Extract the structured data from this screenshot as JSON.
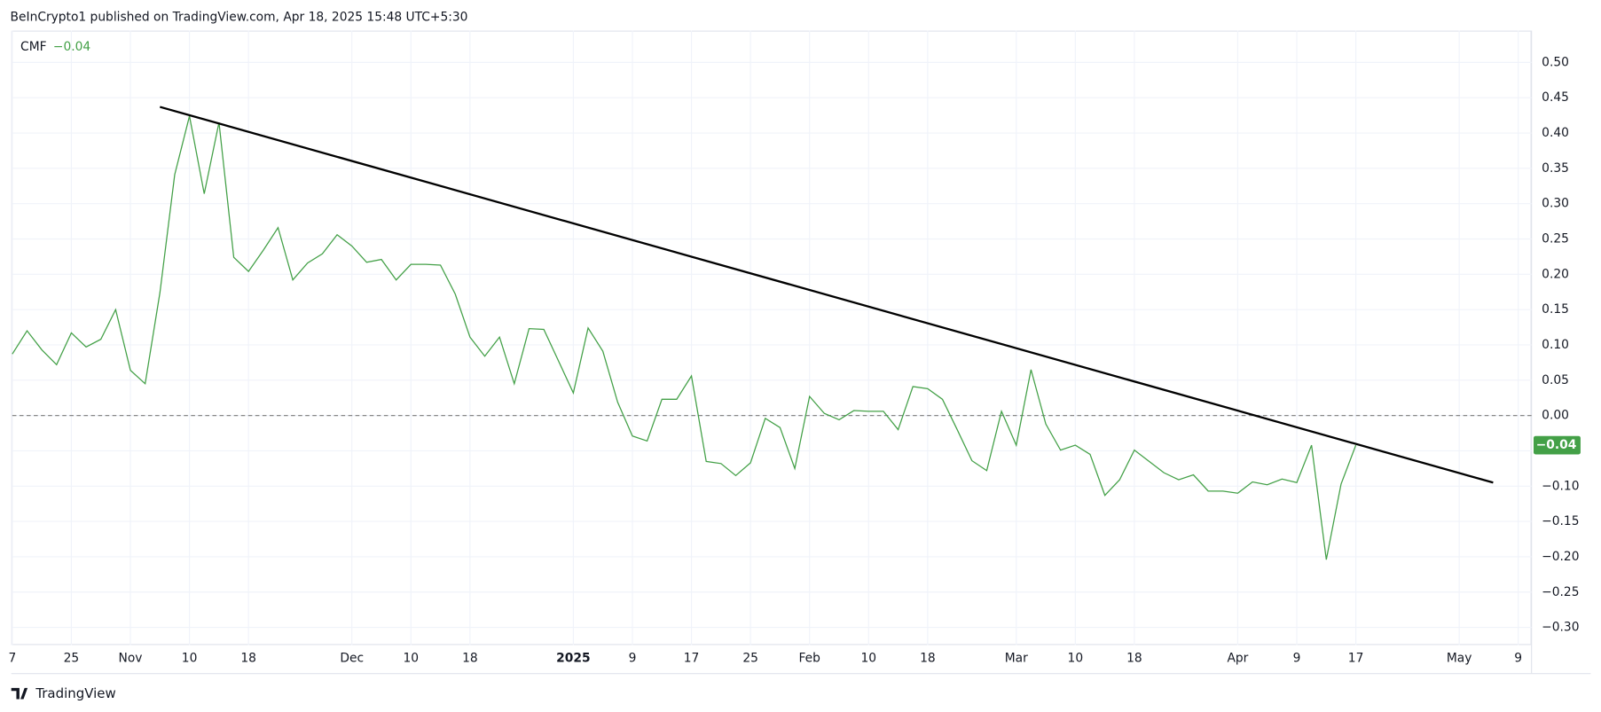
{
  "header": {
    "text": "BeInCrypto1 published on TradingView.com, Apr 18, 2025 15:48 UTC+5:30"
  },
  "footer": {
    "brand": "TradingView"
  },
  "chart_data": {
    "type": "line",
    "indicator": "CMF",
    "current_value": {
      "value": -0.042,
      "label": "−0.04"
    },
    "xlim": [
      0,
      102.9
    ],
    "ylim": [
      -0.325,
      0.545
    ],
    "grid": true,
    "zero_line": 0,
    "xticks": [
      {
        "value": 0,
        "label": "7"
      },
      {
        "value": 4,
        "label": "25"
      },
      {
        "value": 8,
        "label": "Nov"
      },
      {
        "value": 12,
        "label": "10"
      },
      {
        "value": 16,
        "label": "18"
      },
      {
        "value": 23,
        "label": "Dec"
      },
      {
        "value": 27,
        "label": "10"
      },
      {
        "value": 31,
        "label": "18"
      },
      {
        "value": 38,
        "label": "2025",
        "bold": true
      },
      {
        "value": 42,
        "label": "9"
      },
      {
        "value": 46,
        "label": "17"
      },
      {
        "value": 50,
        "label": "25"
      },
      {
        "value": 54,
        "label": "Feb"
      },
      {
        "value": 58,
        "label": "10"
      },
      {
        "value": 62,
        "label": "18"
      },
      {
        "value": 68,
        "label": "Mar"
      },
      {
        "value": 72,
        "label": "10"
      },
      {
        "value": 76,
        "label": "18"
      },
      {
        "value": 83,
        "label": "Apr"
      },
      {
        "value": 87,
        "label": "9"
      },
      {
        "value": 91,
        "label": "17"
      },
      {
        "value": 98,
        "label": "May"
      },
      {
        "value": 102,
        "label": "9"
      }
    ],
    "yticks": [
      {
        "value": 0.5,
        "label": "0.50"
      },
      {
        "value": 0.45,
        "label": "0.45"
      },
      {
        "value": 0.4,
        "label": "0.40"
      },
      {
        "value": 0.35,
        "label": "0.35"
      },
      {
        "value": 0.3,
        "label": "0.30"
      },
      {
        "value": 0.25,
        "label": "0.25"
      },
      {
        "value": 0.2,
        "label": "0.20"
      },
      {
        "value": 0.15,
        "label": "0.15"
      },
      {
        "value": 0.1,
        "label": "0.10"
      },
      {
        "value": 0.05,
        "label": "0.05"
      },
      {
        "value": 0,
        "label": "0.00"
      },
      {
        "value": -0.05,
        "label": "−0.05"
      },
      {
        "value": -0.1,
        "label": "−0.10"
      },
      {
        "value": -0.15,
        "label": "−0.15"
      },
      {
        "value": -0.2,
        "label": "−0.20"
      },
      {
        "value": -0.25,
        "label": "−0.25"
      },
      {
        "value": -0.3,
        "label": "−0.30"
      }
    ],
    "series": [
      {
        "name": "CMF",
        "color": "#43a047",
        "x": [
          0,
          1,
          2,
          3,
          4,
          5,
          6,
          7,
          8,
          9,
          10,
          11,
          12,
          13,
          14,
          15,
          16,
          17,
          18,
          19,
          20,
          21,
          22,
          23,
          24,
          25,
          26,
          27,
          28,
          29,
          30,
          31,
          32,
          33,
          34,
          35,
          36,
          37,
          38,
          39,
          40,
          41,
          42,
          43,
          44,
          45,
          46,
          47,
          48,
          49,
          50,
          51,
          52,
          53,
          54,
          55,
          56,
          57,
          58,
          59,
          60,
          61,
          62,
          63,
          64,
          65,
          66,
          67,
          68,
          69,
          70,
          71,
          72,
          73,
          74,
          75,
          76,
          77,
          78,
          79,
          80,
          81,
          82,
          83,
          84,
          85,
          86,
          87,
          88,
          89,
          90,
          91
        ],
        "values": [
          0.087,
          0.12,
          0.093,
          0.072,
          0.117,
          0.097,
          0.108,
          0.15,
          0.064,
          0.045,
          0.174,
          0.341,
          0.424,
          0.314,
          0.415,
          0.224,
          0.204,
          0.234,
          0.266,
          0.192,
          0.216,
          0.229,
          0.256,
          0.24,
          0.217,
          0.221,
          0.192,
          0.214,
          0.214,
          0.213,
          0.172,
          0.111,
          0.084,
          0.111,
          0.045,
          0.123,
          0.122,
          0.077,
          0.032,
          0.124,
          0.091,
          0.019,
          -0.029,
          -0.036,
          0.023,
          0.023,
          0.056,
          -0.065,
          -0.068,
          -0.085,
          -0.067,
          -0.004,
          -0.017,
          -0.075,
          0.027,
          0.003,
          -0.006,
          0.007,
          0.006,
          0.006,
          -0.02,
          0.041,
          0.038,
          0.023,
          -0.02,
          -0.064,
          -0.078,
          0.006,
          -0.042,
          0.065,
          -0.012,
          -0.049,
          -0.042,
          -0.055,
          -0.113,
          -0.091,
          -0.049,
          -0.065,
          -0.081,
          -0.091,
          -0.084,
          -0.107,
          -0.107,
          -0.11,
          -0.094,
          -0.098,
          -0.09,
          -0.095,
          -0.042,
          -0.204,
          -0.097,
          -0.042
        ]
      }
    ],
    "trendline": {
      "color": "#000000",
      "x": [
        10,
        100.3
      ],
      "values": [
        0.437,
        -0.095
      ]
    }
  }
}
